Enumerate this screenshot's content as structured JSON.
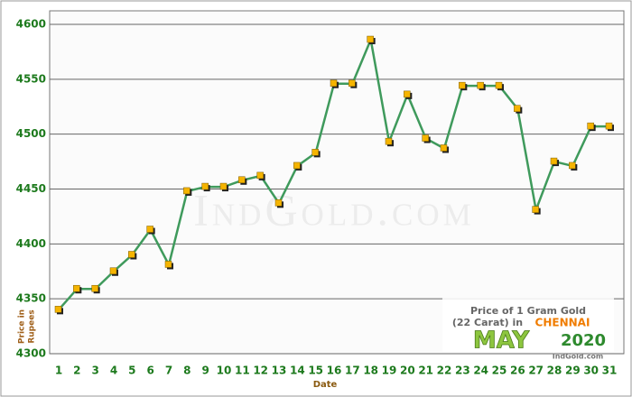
{
  "chart_data": {
    "type": "line",
    "categories": [
      "1",
      "2",
      "3",
      "4",
      "5",
      "6",
      "7",
      "8",
      "9",
      "10",
      "11",
      "12",
      "13",
      "14",
      "15",
      "16",
      "17",
      "18",
      "19",
      "20",
      "21",
      "22",
      "23",
      "24",
      "25",
      "26",
      "27",
      "28",
      "29",
      "30",
      "31"
    ],
    "values": [
      4340,
      4359,
      4359,
      4375,
      4390,
      4413,
      4381,
      4448,
      4452,
      4452,
      4458,
      4462,
      4437,
      4471,
      4483,
      4546,
      4546,
      4586,
      4493,
      4536,
      4496,
      4487,
      4544,
      4544,
      4544,
      4523,
      4431,
      4475,
      4471,
      4507,
      4507
    ],
    "color": "#3f9a5c",
    "marker_color": "#f5b400",
    "ylim": [
      4300,
      4600
    ],
    "yticks": [
      4300,
      4350,
      4400,
      4450,
      4500,
      4550,
      4600
    ],
    "grid": true,
    "xlabel": "Date",
    "ylabel": [
      "Price in",
      "Rupees"
    ],
    "watermark": "IndGold.com",
    "note": {
      "line1": "Price of 1 Gram Gold",
      "line2": "(22 Carat) in",
      "city": "CHENNAI",
      "month": "MAY",
      "year": "2020",
      "site": "IndGold.com"
    }
  }
}
